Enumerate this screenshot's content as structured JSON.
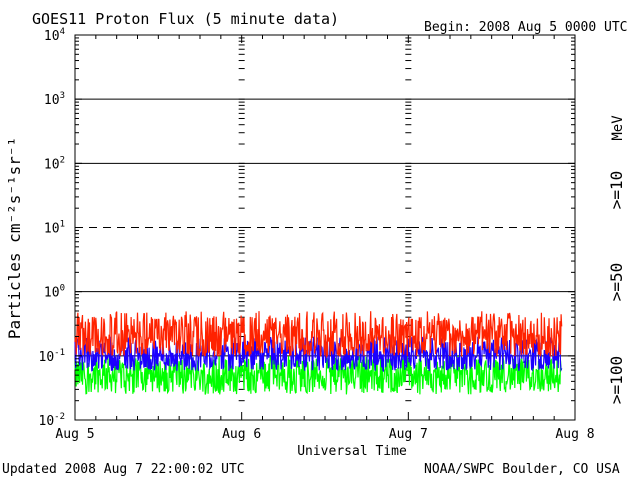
{
  "header": {
    "title": "GOES11 Proton Flux (5 minute data)",
    "begin": "Begin: 2008 Aug 5 0000 UTC"
  },
  "footer": {
    "updated": "Updated 2008 Aug  7 22:00:02 UTC",
    "credit": "NOAA/SWPC Boulder, CO USA"
  },
  "colors": {
    "ge10": "#ff2200",
    "ge50": "#1a00ff",
    "ge100": "#00ff00",
    "axis": "#000000"
  },
  "chart_data": {
    "type": "line",
    "title": "GOES11 Proton Flux (5 minute data)",
    "xlabel": "Universal Time",
    "ylabel": "Particles cm⁻²s⁻¹sr⁻¹",
    "y_scale": "log",
    "ylim": [
      0.01,
      10000
    ],
    "y_ticks": [
      {
        "value": 10000,
        "base": "10",
        "exp": "4"
      },
      {
        "value": 1000,
        "base": "10",
        "exp": "3"
      },
      {
        "value": 100,
        "base": "10",
        "exp": "2"
      },
      {
        "value": 10,
        "base": "10",
        "exp": "1"
      },
      {
        "value": 1,
        "base": "10",
        "exp": "0"
      },
      {
        "value": 0.1,
        "base": "10",
        "exp": "-1"
      },
      {
        "value": 0.01,
        "base": "10",
        "exp": "-2"
      }
    ],
    "x_ticks": [
      "Aug 5",
      "Aug 6",
      "Aug 7",
      "Aug 8"
    ],
    "xlim_days": [
      0,
      3
    ],
    "reference_lines": [
      {
        "value": 1000,
        "style": "solid"
      },
      {
        "value": 100,
        "style": "solid"
      },
      {
        "value": 10,
        "style": "dashed"
      },
      {
        "value": 1,
        "style": "solid"
      },
      {
        "value": 0.1,
        "style": "solid"
      }
    ],
    "unit_label": "MeV",
    "series": [
      {
        "name": ">=10",
        "color": "#ff2200",
        "typical": 0.2,
        "low": 0.1,
        "high": 0.5
      },
      {
        "name": ">=50",
        "color": "#1a00ff",
        "typical": 0.1,
        "low": 0.06,
        "high": 0.2
      },
      {
        "name": ">=100",
        "color": "#00ff00",
        "typical": 0.05,
        "low": 0.025,
        "high": 0.1
      }
    ],
    "data_end_day": 2.92
  }
}
